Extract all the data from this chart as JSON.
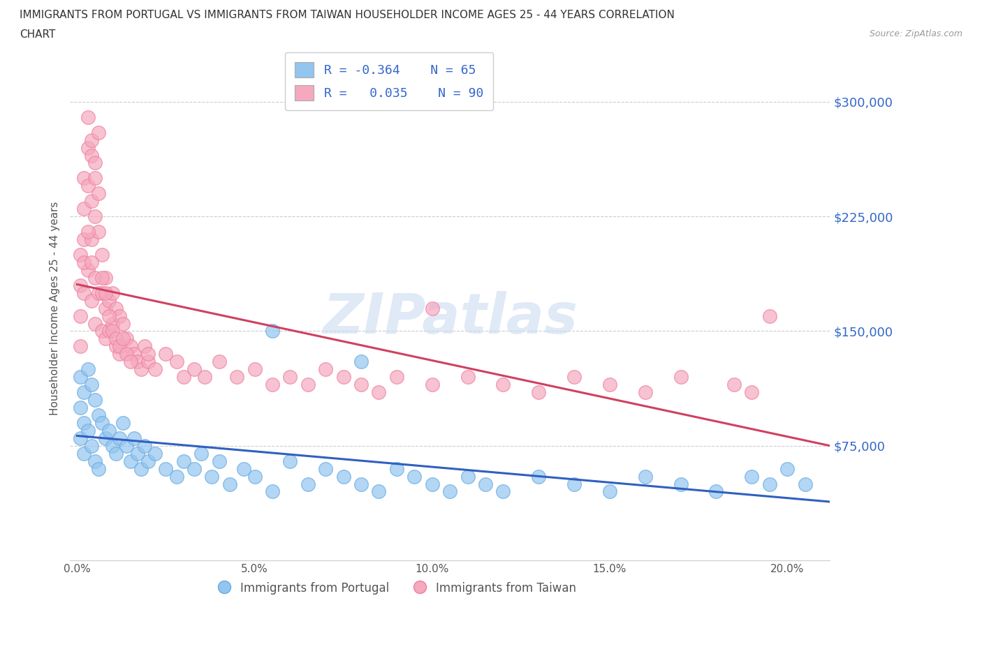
{
  "title_line1": "IMMIGRANTS FROM PORTUGAL VS IMMIGRANTS FROM TAIWAN HOUSEHOLDER INCOME AGES 25 - 44 YEARS CORRELATION",
  "title_line2": "CHART",
  "source": "Source: ZipAtlas.com",
  "ylabel": "Householder Income Ages 25 - 44 years",
  "xlim": [
    -0.002,
    0.212
  ],
  "ylim": [
    0,
    330000
  ],
  "yticks": [
    75000,
    150000,
    225000,
    300000
  ],
  "ytick_labels": [
    "$75,000",
    "$150,000",
    "$225,000",
    "$300,000"
  ],
  "xticks": [
    0.0,
    0.05,
    0.1,
    0.15,
    0.2
  ],
  "xtick_labels": [
    "0.0%",
    "5.0%",
    "10.0%",
    "15.0%",
    "20.0%"
  ],
  "portugal_color": "#92C5F0",
  "taiwan_color": "#F5A8BE",
  "portugal_edge_color": "#6AAAE0",
  "taiwan_edge_color": "#EF80A0",
  "portugal_line_color": "#3060C0",
  "taiwan_line_color": "#D04060",
  "watermark": "ZIPatlas",
  "legend_R_portugal": "-0.364",
  "legend_N_portugal": "65",
  "legend_R_taiwan": "0.035",
  "legend_N_taiwan": "90",
  "background_color": "#ffffff",
  "grid_color": "#cccccc",
  "portugal_scatter_x": [
    0.001,
    0.001,
    0.001,
    0.002,
    0.002,
    0.002,
    0.003,
    0.003,
    0.004,
    0.004,
    0.005,
    0.005,
    0.006,
    0.006,
    0.007,
    0.008,
    0.009,
    0.01,
    0.011,
    0.012,
    0.013,
    0.014,
    0.015,
    0.016,
    0.017,
    0.018,
    0.019,
    0.02,
    0.022,
    0.025,
    0.028,
    0.03,
    0.033,
    0.035,
    0.038,
    0.04,
    0.043,
    0.047,
    0.05,
    0.055,
    0.06,
    0.065,
    0.07,
    0.075,
    0.08,
    0.085,
    0.09,
    0.095,
    0.1,
    0.105,
    0.11,
    0.115,
    0.12,
    0.13,
    0.14,
    0.15,
    0.16,
    0.17,
    0.18,
    0.19,
    0.195,
    0.2,
    0.205,
    0.055,
    0.08
  ],
  "portugal_scatter_y": [
    120000,
    100000,
    80000,
    110000,
    90000,
    70000,
    125000,
    85000,
    115000,
    75000,
    105000,
    65000,
    95000,
    60000,
    90000,
    80000,
    85000,
    75000,
    70000,
    80000,
    90000,
    75000,
    65000,
    80000,
    70000,
    60000,
    75000,
    65000,
    70000,
    60000,
    55000,
    65000,
    60000,
    70000,
    55000,
    65000,
    50000,
    60000,
    55000,
    45000,
    65000,
    50000,
    60000,
    55000,
    50000,
    45000,
    60000,
    55000,
    50000,
    45000,
    55000,
    50000,
    45000,
    55000,
    50000,
    45000,
    55000,
    50000,
    45000,
    55000,
    50000,
    60000,
    50000,
    150000,
    130000
  ],
  "taiwan_scatter_x": [
    0.001,
    0.001,
    0.001,
    0.001,
    0.002,
    0.002,
    0.002,
    0.002,
    0.003,
    0.003,
    0.003,
    0.004,
    0.004,
    0.004,
    0.004,
    0.005,
    0.005,
    0.005,
    0.005,
    0.006,
    0.006,
    0.006,
    0.007,
    0.007,
    0.007,
    0.008,
    0.008,
    0.008,
    0.009,
    0.009,
    0.01,
    0.01,
    0.011,
    0.011,
    0.012,
    0.012,
    0.013,
    0.014,
    0.015,
    0.016,
    0.017,
    0.018,
    0.019,
    0.02,
    0.022,
    0.025,
    0.028,
    0.03,
    0.033,
    0.036,
    0.04,
    0.045,
    0.05,
    0.055,
    0.06,
    0.065,
    0.07,
    0.075,
    0.08,
    0.085,
    0.09,
    0.1,
    0.11,
    0.12,
    0.13,
    0.14,
    0.15,
    0.16,
    0.17,
    0.185,
    0.195,
    0.003,
    0.004,
    0.005,
    0.006,
    0.002,
    0.003,
    0.004,
    0.007,
    0.008,
    0.009,
    0.01,
    0.011,
    0.012,
    0.013,
    0.014,
    0.015,
    0.02,
    0.1,
    0.19
  ],
  "taiwan_scatter_y": [
    200000,
    180000,
    160000,
    140000,
    250000,
    230000,
    210000,
    175000,
    270000,
    245000,
    190000,
    265000,
    235000,
    210000,
    170000,
    250000,
    225000,
    185000,
    155000,
    240000,
    215000,
    175000,
    200000,
    175000,
    150000,
    185000,
    165000,
    145000,
    170000,
    150000,
    175000,
    155000,
    165000,
    140000,
    160000,
    135000,
    155000,
    145000,
    140000,
    135000,
    130000,
    125000,
    140000,
    130000,
    125000,
    135000,
    130000,
    120000,
    125000,
    120000,
    130000,
    120000,
    125000,
    115000,
    120000,
    115000,
    125000,
    120000,
    115000,
    110000,
    120000,
    115000,
    120000,
    115000,
    110000,
    120000,
    115000,
    110000,
    120000,
    115000,
    160000,
    290000,
    275000,
    260000,
    280000,
    195000,
    215000,
    195000,
    185000,
    175000,
    160000,
    150000,
    145000,
    140000,
    145000,
    135000,
    130000,
    135000,
    165000,
    110000
  ]
}
